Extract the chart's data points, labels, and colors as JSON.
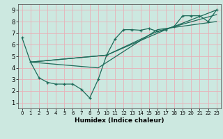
{
  "xlabel": "Humidex (Indice chaleur)",
  "xlim": [
    -0.5,
    23.5
  ],
  "ylim": [
    0.5,
    9.5
  ],
  "xticks": [
    0,
    1,
    2,
    3,
    4,
    5,
    6,
    7,
    8,
    9,
    10,
    11,
    12,
    13,
    14,
    15,
    16,
    17,
    18,
    19,
    20,
    21,
    22,
    23
  ],
  "yticks": [
    1,
    2,
    3,
    4,
    5,
    6,
    7,
    8,
    9
  ],
  "background_color": "#cce8e0",
  "grid_color": "#e8b0b8",
  "line_color": "#1e6b5a",
  "jagged_x": [
    0,
    1,
    2,
    3,
    4,
    5,
    6,
    7,
    8,
    9,
    10,
    11,
    12,
    13,
    14,
    15,
    16,
    17,
    18,
    19,
    20,
    21,
    22,
    23
  ],
  "jagged_y": [
    6.6,
    4.5,
    3.15,
    2.75,
    2.6,
    2.6,
    2.6,
    2.15,
    1.4,
    3.0,
    5.1,
    6.5,
    7.3,
    7.3,
    7.25,
    7.4,
    7.15,
    7.3,
    7.6,
    8.5,
    8.5,
    8.5,
    8.0,
    9.0
  ],
  "line2_x": [
    1,
    9,
    16,
    23
  ],
  "line2_y": [
    4.5,
    4.0,
    7.3,
    8.0
  ],
  "line3_x": [
    1,
    10,
    16,
    23
  ],
  "line3_y": [
    4.5,
    5.1,
    7.15,
    8.6
  ],
  "line4_x": [
    1,
    10,
    17,
    23
  ],
  "line4_y": [
    4.5,
    5.1,
    7.3,
    9.0
  ]
}
